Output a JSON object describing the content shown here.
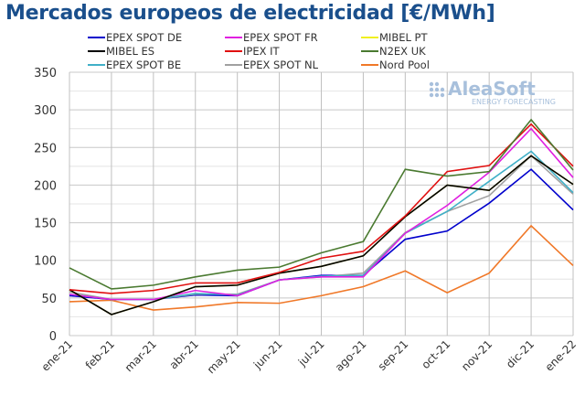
{
  "chart_data": {
    "type": "line",
    "title": "Mercados europeos de electricidad [€/MWh]",
    "xlabel": "",
    "ylabel": "",
    "categories": [
      "ene-21",
      "feb-21",
      "mar-21",
      "abr-21",
      "may-21",
      "jun-21",
      "jul-21",
      "ago-21",
      "sep-21",
      "oct-21",
      "nov-21",
      "dic-21",
      "ene-22"
    ],
    "ylim": [
      0,
      350
    ],
    "yticks": [
      0,
      50,
      100,
      150,
      200,
      250,
      300,
      350
    ],
    "grid": true,
    "legend_position": "top",
    "watermark": {
      "brand": "AleaSoft",
      "tagline": "ENERGY FORECASTING"
    },
    "series": [
      {
        "name": "EPEX SPOT DE",
        "color": "#0000cc",
        "values": [
          53,
          48,
          48,
          54,
          53,
          74,
          80,
          80,
          128,
          139,
          176,
          221,
          167
        ]
      },
      {
        "name": "EPEX SPOT FR",
        "color": "#e020e0",
        "values": [
          55,
          48,
          48,
          60,
          53,
          74,
          78,
          78,
          136,
          173,
          217,
          275,
          210
        ]
      },
      {
        "name": "MIBEL PT",
        "color": "#f0f020",
        "values": [
          61,
          28,
          45,
          65,
          67,
          83,
          92,
          106,
          158,
          200,
          193,
          239,
          201
        ]
      },
      {
        "name": "MIBEL ES",
        "color": "#000000",
        "values": [
          61,
          28,
          45,
          65,
          67,
          83,
          92,
          106,
          158,
          200,
          193,
          239,
          201
        ]
      },
      {
        "name": "IPEX IT",
        "color": "#e01010",
        "values": [
          61,
          56,
          60,
          70,
          70,
          84,
          103,
          112,
          159,
          218,
          226,
          281,
          225
        ]
      },
      {
        "name": "N2EX UK",
        "color": "#4a7a30",
        "values": [
          90,
          62,
          67,
          78,
          87,
          91,
          110,
          125,
          221,
          212,
          218,
          287,
          220
        ]
      },
      {
        "name": "EPEX SPOT BE",
        "color": "#40b0c8",
        "values": [
          55,
          48,
          48,
          56,
          54,
          74,
          79,
          80,
          136,
          165,
          205,
          245,
          190
        ]
      },
      {
        "name": "EPEX SPOT NL",
        "color": "#a0a0a0",
        "values": [
          58,
          48,
          48,
          55,
          55,
          74,
          78,
          83,
          137,
          165,
          186,
          239,
          188
        ]
      },
      {
        "name": "Nord Pool",
        "color": "#f07828",
        "values": [
          45,
          47,
          34,
          38,
          44,
          43,
          53,
          65,
          86,
          57,
          83,
          146,
          93
        ]
      }
    ]
  }
}
